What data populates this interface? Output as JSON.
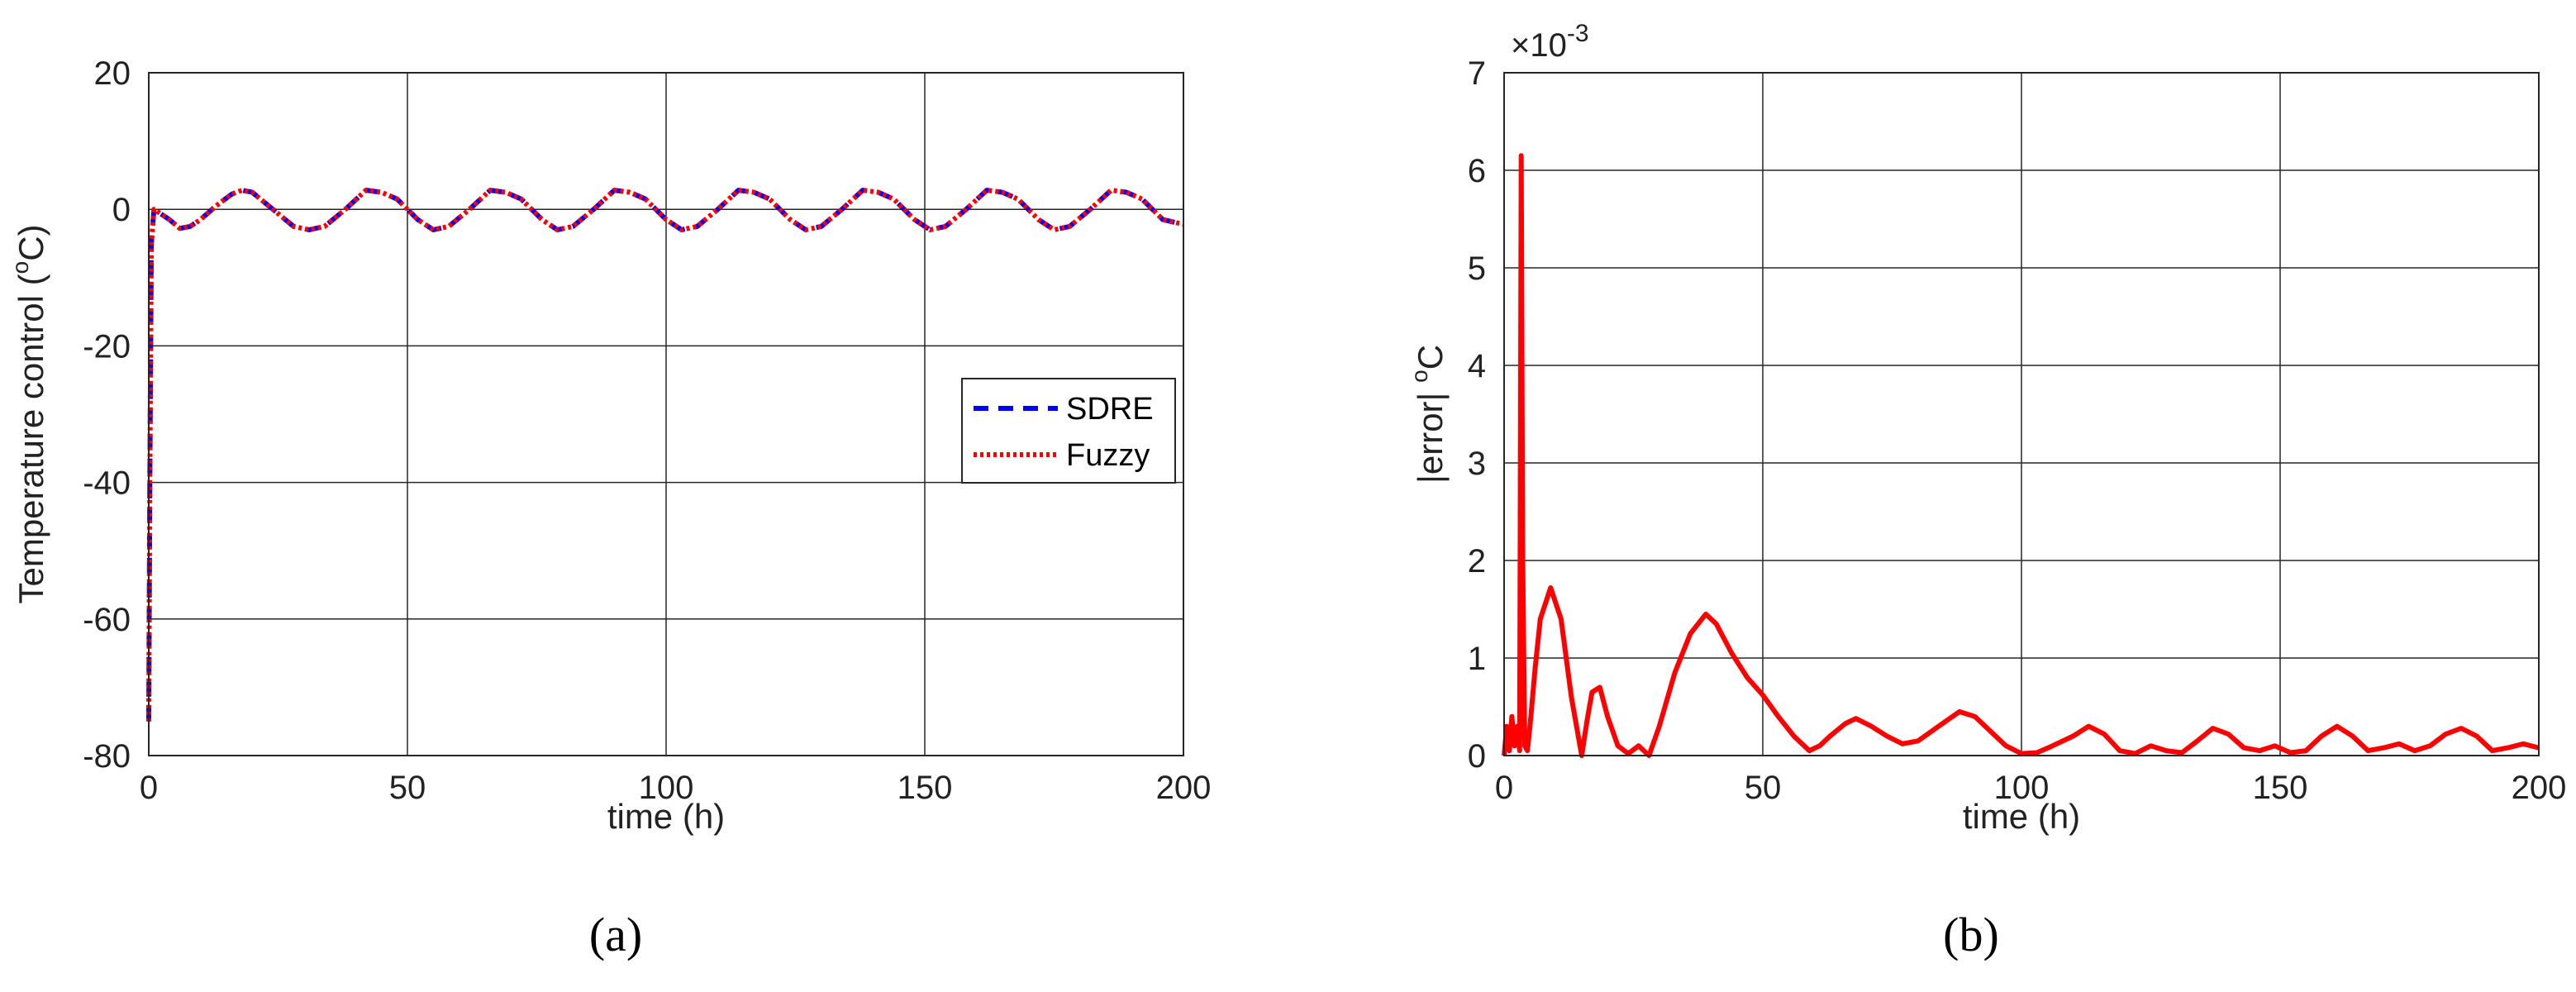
{
  "chart_data": [
    {
      "type": "line",
      "panel_label": "(a)",
      "xlabel": "time (h)",
      "ylabel": "Temperature control (",
      "ylabel_unit": "o",
      "ylabel_unit_end": "C)",
      "xlim": [
        0,
        200
      ],
      "ylim": [
        -80,
        20
      ],
      "xticks": [
        0,
        50,
        100,
        150,
        200
      ],
      "xtick_labels": [
        "0",
        "50",
        "100",
        "150",
        "200"
      ],
      "yticks": [
        -80,
        -60,
        -40,
        -20,
        0,
        20
      ],
      "ytick_labels": [
        "-80",
        "-60",
        "-40",
        "-20",
        "0",
        "20"
      ],
      "grid": true,
      "legend_position": "right",
      "series": [
        {
          "name": "SDRE",
          "color": "#0000ff",
          "style": "dashed",
          "x": [
            0,
            0.2,
            0.5,
            1,
            2,
            4,
            6,
            8,
            10,
            13,
            16,
            18,
            20,
            24,
            28,
            31,
            34,
            38,
            42,
            45,
            48,
            52,
            55,
            58,
            62,
            66,
            69,
            72,
            76,
            79,
            82,
            86,
            90,
            93,
            96,
            100,
            103,
            106,
            110,
            114,
            117,
            120,
            124,
            127,
            130,
            134,
            138,
            141,
            144,
            148,
            151,
            154,
            158,
            162,
            165,
            168,
            172,
            175,
            178,
            182,
            186,
            189,
            192,
            196,
            200
          ],
          "values": [
            -75,
            -40,
            -5,
            0,
            -0.5,
            -1.5,
            -2.8,
            -2.5,
            -1.5,
            0.5,
            2.2,
            2.8,
            2.5,
            0,
            -2.5,
            -3,
            -2.5,
            0,
            2.8,
            2.5,
            1.5,
            -1.5,
            -3,
            -2.5,
            0,
            2.8,
            2.5,
            1.5,
            -1.5,
            -3,
            -2.5,
            0,
            2.8,
            2.5,
            1.5,
            -1.5,
            -3,
            -2.5,
            0,
            2.8,
            2.5,
            1.5,
            -1.5,
            -3,
            -2.5,
            0,
            2.8,
            2.5,
            1.5,
            -1.5,
            -3,
            -2.5,
            0,
            2.8,
            2.5,
            1.5,
            -1.5,
            -3,
            -2.5,
            0,
            2.8,
            2.5,
            1.5,
            -1.5,
            -2.2
          ]
        },
        {
          "name": "Fuzzy",
          "color": "#ff0000",
          "style": "dotted",
          "x": [
            0,
            0.2,
            0.5,
            1,
            2,
            4,
            6,
            8,
            10,
            13,
            16,
            18,
            20,
            24,
            28,
            31,
            34,
            38,
            42,
            45,
            48,
            52,
            55,
            58,
            62,
            66,
            69,
            72,
            76,
            79,
            82,
            86,
            90,
            93,
            96,
            100,
            103,
            106,
            110,
            114,
            117,
            120,
            124,
            127,
            130,
            134,
            138,
            141,
            144,
            148,
            151,
            154,
            158,
            162,
            165,
            168,
            172,
            175,
            178,
            182,
            186,
            189,
            192,
            196,
            200
          ],
          "values": [
            -75,
            -40,
            -5,
            0,
            -0.5,
            -1.5,
            -2.8,
            -2.5,
            -1.5,
            0.5,
            2.2,
            2.8,
            2.5,
            0,
            -2.5,
            -3,
            -2.5,
            0,
            2.8,
            2.5,
            1.5,
            -1.5,
            -3,
            -2.5,
            0,
            2.8,
            2.5,
            1.5,
            -1.5,
            -3,
            -2.5,
            0,
            2.8,
            2.5,
            1.5,
            -1.5,
            -3,
            -2.5,
            0,
            2.8,
            2.5,
            1.5,
            -1.5,
            -3,
            -2.5,
            0,
            2.8,
            2.5,
            1.5,
            -1.5,
            -3,
            -2.5,
            0,
            2.8,
            2.5,
            1.5,
            -1.5,
            -3,
            -2.5,
            0,
            2.8,
            2.5,
            1.5,
            -1.5,
            -2.2
          ]
        }
      ]
    },
    {
      "type": "line",
      "panel_label": "(b)",
      "xlabel": "time (h)",
      "ylabel": "|error| ",
      "ylabel_unit": "o",
      "ylabel_unit_end": "C",
      "scale_base": "×10",
      "scale_exp": "-3",
      "xlim": [
        0,
        200
      ],
      "ylim": [
        0,
        7
      ],
      "xticks": [
        0,
        50,
        100,
        150,
        200
      ],
      "xtick_labels": [
        "0",
        "50",
        "100",
        "150",
        "200"
      ],
      "yticks": [
        0,
        1,
        2,
        3,
        4,
        5,
        6,
        7
      ],
      "ytick_labels": [
        "0",
        "1",
        "2",
        "3",
        "4",
        "5",
        "6",
        "7"
      ],
      "grid": true,
      "series": [
        {
          "color": "#ff0000",
          "style": "solid",
          "x": [
            0,
            0.5,
            1,
            1.5,
            2,
            2.5,
            3,
            3.3,
            3.6,
            4,
            4.5,
            5,
            6,
            7,
            9,
            11,
            13,
            15,
            16,
            17,
            18.5,
            20,
            22,
            24,
            26,
            28,
            30,
            33,
            36,
            39,
            41,
            44,
            47,
            50,
            53,
            56,
            59,
            61,
            63,
            66,
            68,
            71,
            74,
            77,
            80,
            84,
            88,
            91,
            94,
            97,
            100,
            103,
            106,
            110,
            113,
            116,
            119,
            122,
            125,
            128,
            131,
            134,
            137,
            140,
            143,
            146,
            149,
            152,
            155,
            158,
            161,
            164,
            167,
            170,
            173,
            176,
            179,
            182,
            185,
            188,
            191,
            194,
            197,
            200
          ],
          "values": [
            0,
            0.3,
            0.05,
            0.4,
            0.1,
            0.3,
            0.05,
            6.15,
            2.0,
            0.1,
            0.05,
            0.3,
            0.9,
            1.4,
            1.72,
            1.4,
            0.6,
            0.0,
            0.35,
            0.65,
            0.7,
            0.4,
            0.1,
            0.02,
            0.1,
            0.0,
            0.3,
            0.85,
            1.25,
            1.45,
            1.35,
            1.05,
            0.8,
            0.62,
            0.4,
            0.2,
            0.05,
            0.1,
            0.2,
            0.33,
            0.38,
            0.3,
            0.2,
            0.12,
            0.15,
            0.3,
            0.45,
            0.4,
            0.25,
            0.1,
            0.02,
            0.03,
            0.1,
            0.2,
            0.3,
            0.22,
            0.05,
            0.02,
            0.1,
            0.05,
            0.03,
            0.15,
            0.28,
            0.22,
            0.08,
            0.05,
            0.1,
            0.03,
            0.05,
            0.2,
            0.3,
            0.2,
            0.05,
            0.08,
            0.12,
            0.05,
            0.1,
            0.22,
            0.28,
            0.2,
            0.05,
            0.08,
            0.12,
            0.08
          ]
        }
      ]
    }
  ],
  "legend": {
    "entries": [
      {
        "label": "SDRE",
        "color": "#0000ff",
        "style": "dashed"
      },
      {
        "label": "Fuzzy",
        "color": "#ff0000",
        "style": "dotted"
      }
    ]
  }
}
